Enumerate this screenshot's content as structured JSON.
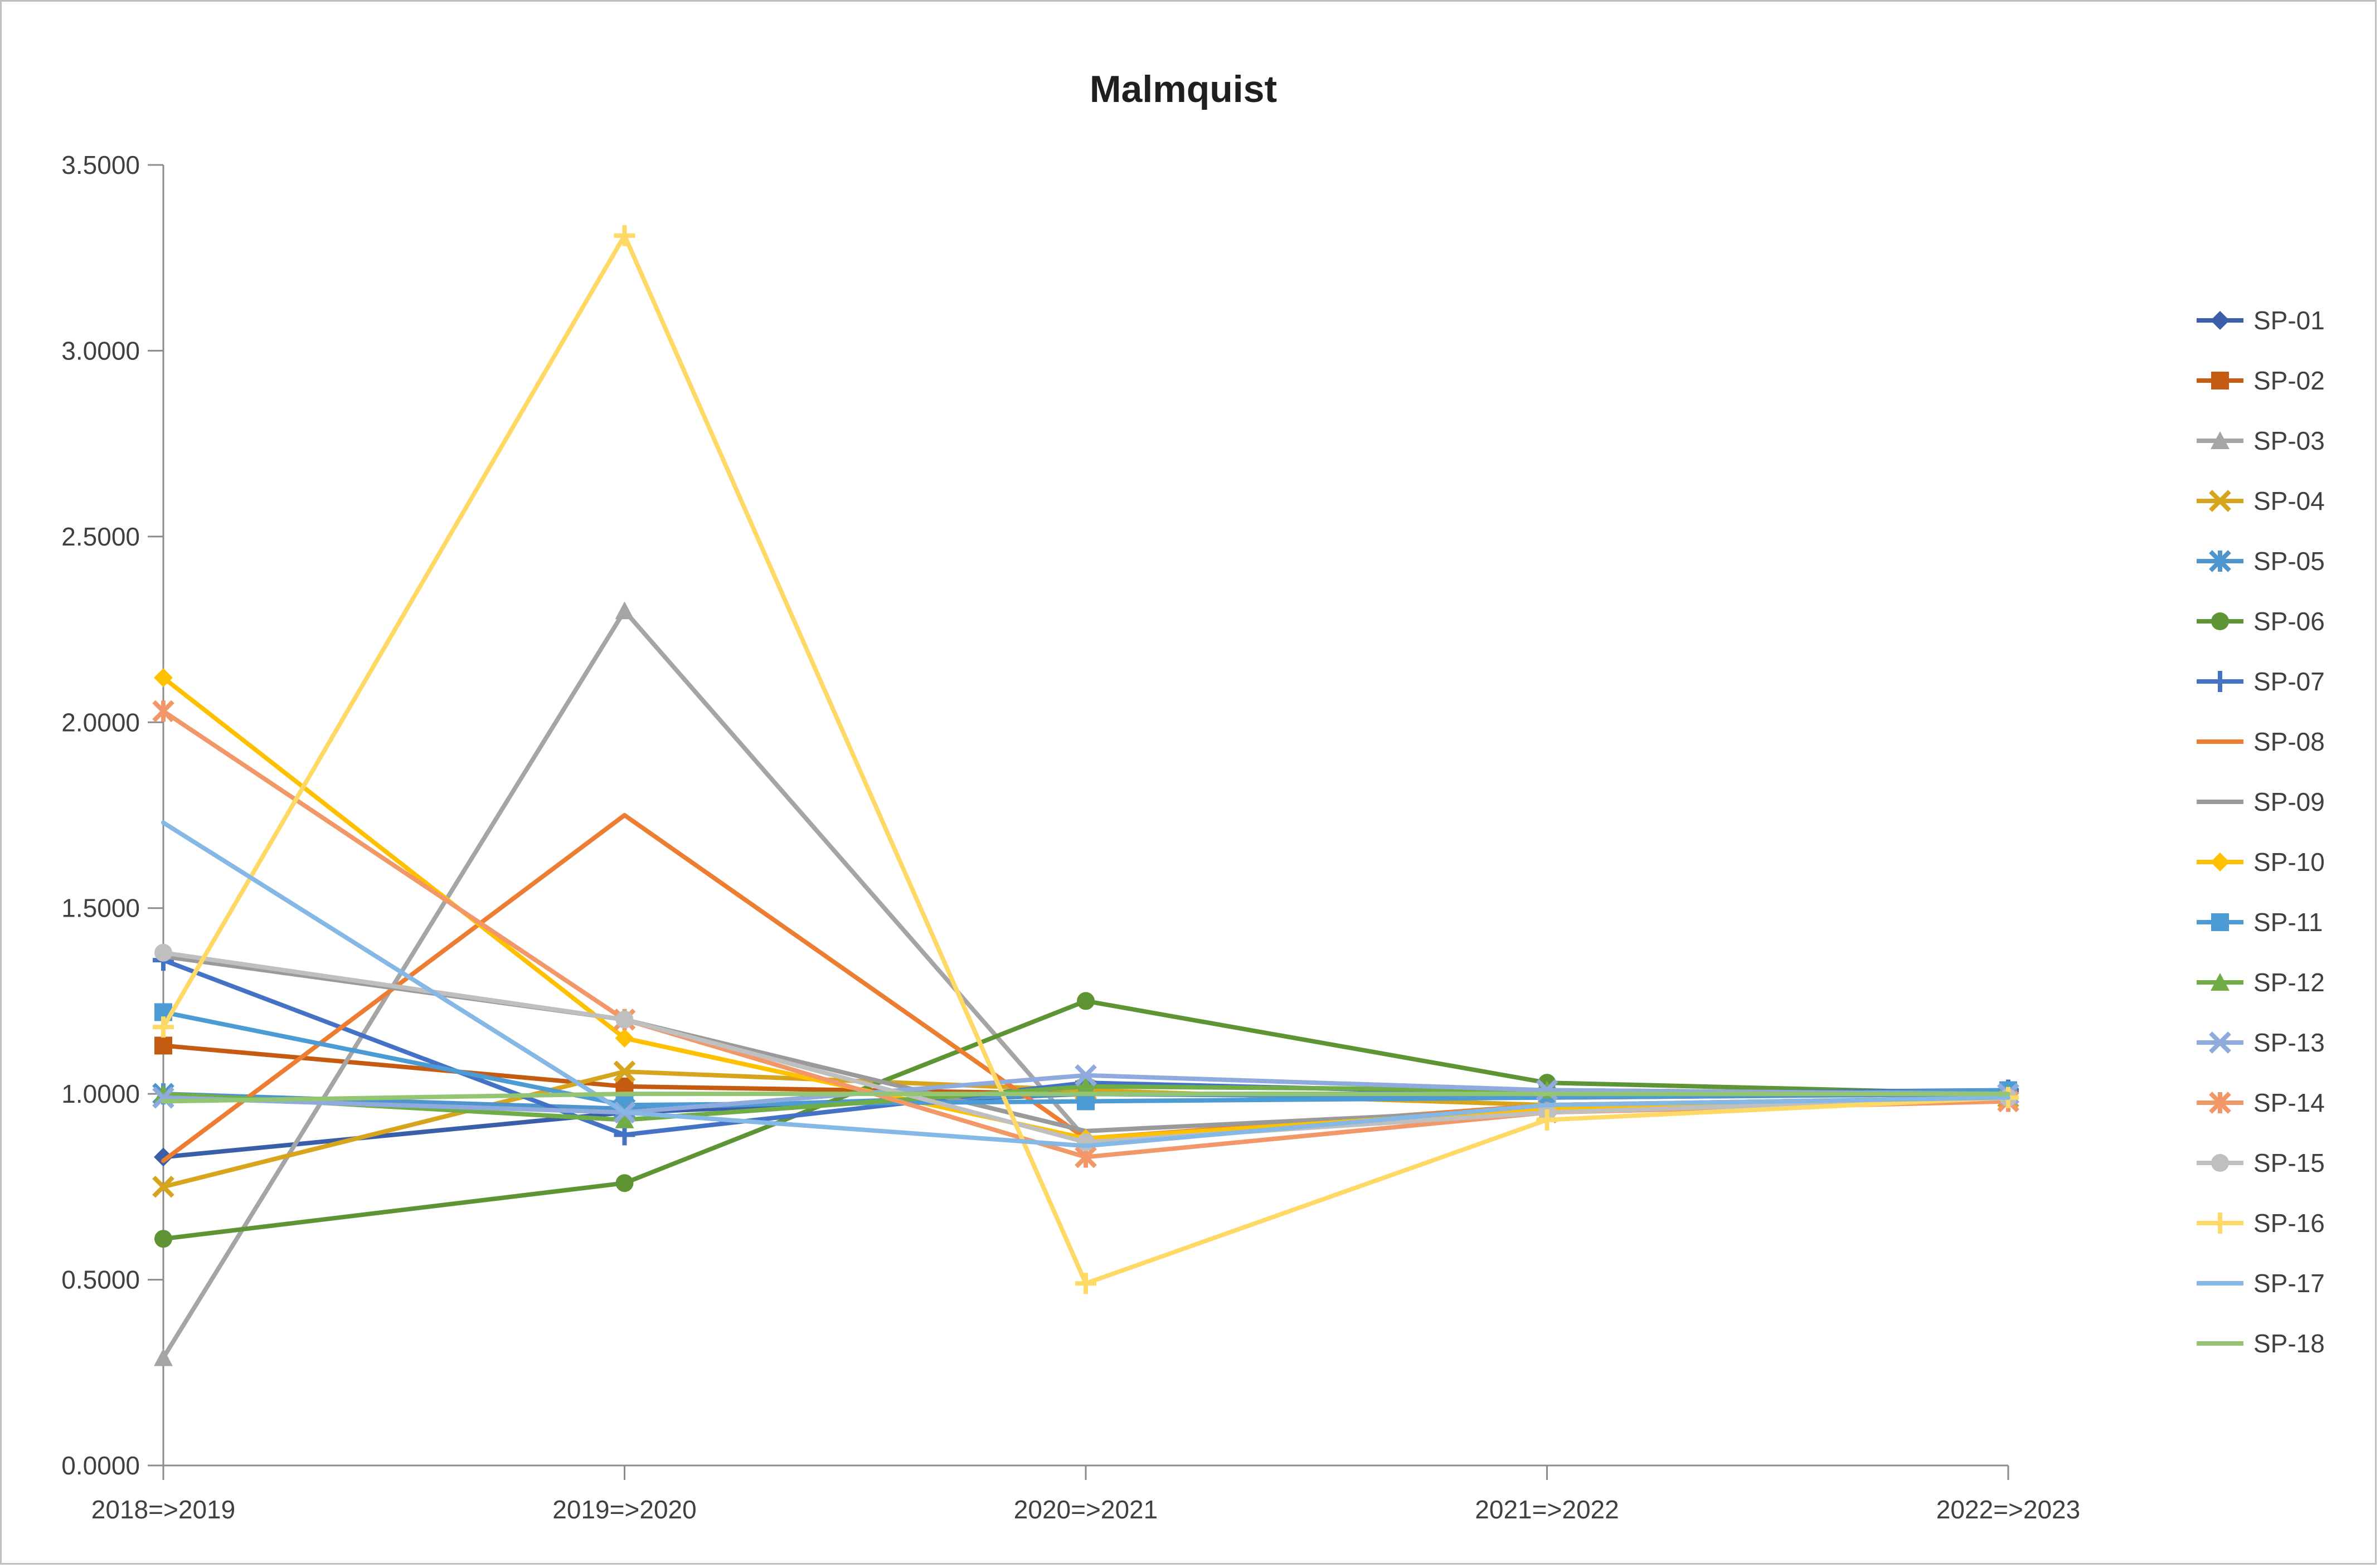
{
  "chart_data": {
    "type": "line",
    "title": "Malmquist",
    "xlabel": "",
    "ylabel": "",
    "categories": [
      "2018=>2019",
      "2019=>2020",
      "2020=>2021",
      "2021=>2022",
      "2022=>2023"
    ],
    "y_axis": {
      "min": 0.0,
      "max": 3.5,
      "step": 0.5,
      "tick_labels": [
        "0.0000",
        "0.5000",
        "1.0000",
        "1.5000",
        "2.0000",
        "2.5000",
        "3.0000",
        "3.5000"
      ]
    },
    "grid": false,
    "legend_position": "right",
    "axis_color": "#8c8c8c",
    "label_color": "#404040",
    "title_color": "#1f1f1f",
    "series": [
      {
        "name": "SP-01",
        "color": "#3B5EA9",
        "marker": "diamond",
        "values": [
          0.83,
          0.95,
          1.0,
          1.0,
          1.0
        ]
      },
      {
        "name": "SP-02",
        "color": "#C55A11",
        "marker": "square",
        "values": [
          1.13,
          1.02,
          1.0,
          0.99,
          1.0
        ]
      },
      {
        "name": "SP-03",
        "color": "#A5A5A5",
        "marker": "triangle",
        "values": [
          0.29,
          2.3,
          0.88,
          0.95,
          0.99
        ]
      },
      {
        "name": "SP-04",
        "color": "#D6A51D",
        "marker": "x",
        "values": [
          0.75,
          1.06,
          1.01,
          0.97,
          0.99
        ]
      },
      {
        "name": "SP-05",
        "color": "#4E95CE",
        "marker": "asterisk",
        "values": [
          1.0,
          0.96,
          1.0,
          0.99,
          1.0
        ]
      },
      {
        "name": "SP-06",
        "color": "#5F9434",
        "marker": "circle",
        "values": [
          0.61,
          0.76,
          1.25,
          1.03,
          1.0
        ]
      },
      {
        "name": "SP-07",
        "color": "#4472C4",
        "marker": "plus",
        "values": [
          1.36,
          0.89,
          1.03,
          1.0,
          1.01
        ]
      },
      {
        "name": "SP-08",
        "color": "#ED7D31",
        "marker": "none",
        "values": [
          0.82,
          1.75,
          0.88,
          0.97,
          0.99
        ]
      },
      {
        "name": "SP-09",
        "color": "#9A9A9A",
        "marker": "none",
        "values": [
          1.37,
          1.2,
          0.9,
          0.96,
          0.99
        ]
      },
      {
        "name": "SP-10",
        "color": "#FFC000",
        "marker": "diamond",
        "values": [
          2.12,
          1.15,
          0.88,
          0.96,
          0.99
        ]
      },
      {
        "name": "SP-11",
        "color": "#4C9BD4",
        "marker": "square",
        "values": [
          1.22,
          0.97,
          0.98,
          0.99,
          1.01
        ]
      },
      {
        "name": "SP-12",
        "color": "#70AD47",
        "marker": "triangle",
        "values": [
          1.0,
          0.93,
          1.02,
          1.01,
          1.0
        ]
      },
      {
        "name": "SP-13",
        "color": "#8FAADC",
        "marker": "x",
        "values": [
          0.99,
          0.95,
          1.05,
          1.01,
          1.0
        ]
      },
      {
        "name": "SP-14",
        "color": "#F19768",
        "marker": "asterisk",
        "values": [
          2.03,
          1.2,
          0.83,
          0.95,
          0.98
        ]
      },
      {
        "name": "SP-15",
        "color": "#BFBFBF",
        "marker": "circle",
        "values": [
          1.38,
          1.2,
          0.87,
          0.95,
          0.99
        ]
      },
      {
        "name": "SP-16",
        "color": "#FFD966",
        "marker": "plus",
        "values": [
          1.18,
          3.31,
          0.49,
          0.93,
          0.99
        ]
      },
      {
        "name": "SP-17",
        "color": "#85B8E4",
        "marker": "none",
        "values": [
          1.73,
          0.95,
          0.86,
          0.97,
          0.99
        ]
      },
      {
        "name": "SP-18",
        "color": "#93C572",
        "marker": "none",
        "values": [
          0.98,
          1.0,
          1.0,
          1.0,
          1.0
        ]
      }
    ]
  }
}
